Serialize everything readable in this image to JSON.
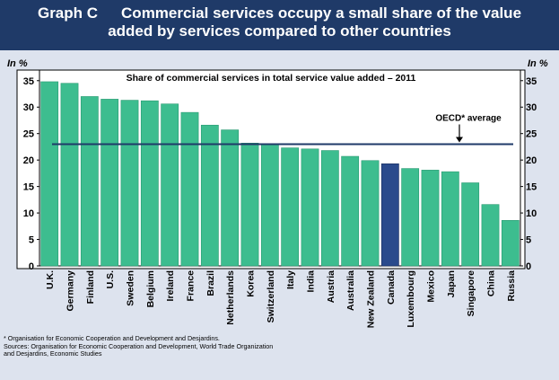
{
  "header": {
    "label": "Graph C",
    "title_line1": "Commercial services occupy a small share of the value",
    "title_line2": "added by services compared to other countries"
  },
  "chart_data": {
    "type": "bar",
    "title": "Share of commercial services in total service value added – 2011",
    "ylabel_left": "In %",
    "ylabel_right": "In %",
    "ylim": [
      0,
      37
    ],
    "yticks": [
      0,
      5,
      10,
      15,
      20,
      25,
      30,
      35
    ],
    "categories": [
      "U.K.",
      "Germany",
      "Finland",
      "U.S.",
      "Sweden",
      "Belgium",
      "Ireland",
      "France",
      "Brazil",
      "Netherlands",
      "Korea",
      "Switzerland",
      "Italy",
      "India",
      "Austria",
      "Australia",
      "New Zealand",
      "Canada",
      "Luxembourg",
      "Mexico",
      "Japan",
      "Singapore",
      "China",
      "Russia"
    ],
    "values": [
      34.8,
      34.5,
      32.0,
      31.5,
      31.3,
      31.2,
      30.6,
      29.0,
      26.6,
      25.7,
      23.2,
      23.0,
      22.3,
      22.1,
      21.8,
      20.7,
      19.9,
      19.3,
      18.4,
      18.1,
      17.8,
      15.7,
      11.6,
      8.6
    ],
    "highlight": "Canada",
    "reference_line": {
      "label": "OECD* average",
      "value": 23.0
    },
    "colors": {
      "bar": "#3dbd8f",
      "highlight": "#2a4a8c",
      "reference": "#1f3a68",
      "plot_bg": "#ffffff"
    }
  },
  "footnotes": {
    "line1": "* Organisation for Economic Cooperation and Development and Desjardins.",
    "line2": "Sources: Organisation for Economic Cooperation and Development, World Trade Organization",
    "line3": "and Desjardins, Economic Studies"
  }
}
